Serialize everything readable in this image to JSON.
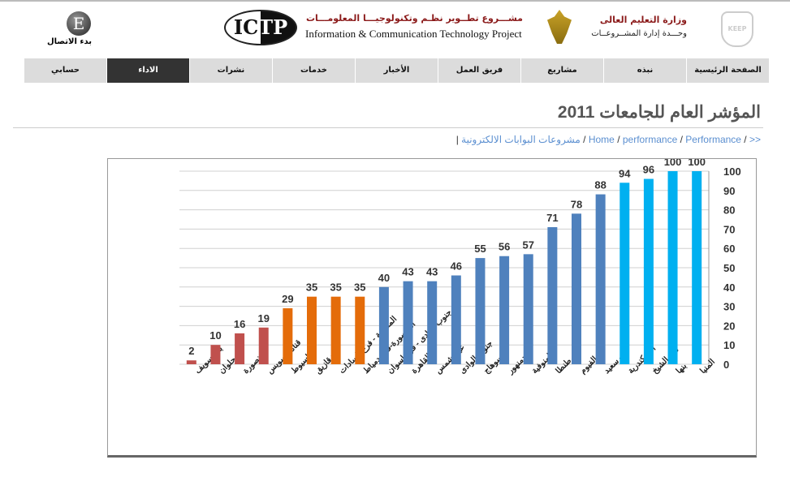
{
  "header": {
    "connect_logo_letter": "E",
    "connect_label": "بدء الاتصال",
    "ictp_logo": "ICTP",
    "project_ar": "مشـــروع تطــوير نظـم وتكنولوجيـــا المعلومـــات",
    "project_en": "Information & Communication Technology Project",
    "ministry": "وزارة التعليم العالى",
    "unit": "وحـــدة إدارة المشــروعــات",
    "keep_logo": "KEEP"
  },
  "nav": [
    {
      "label": "الصفحة الرئيسية",
      "active": false
    },
    {
      "label": "نبذه",
      "active": false
    },
    {
      "label": "مشاريع",
      "active": false
    },
    {
      "label": "فريق العمل",
      "active": false
    },
    {
      "label": "الأخبار",
      "active": false
    },
    {
      "label": "خدمات",
      "active": false
    },
    {
      "label": "نشرات",
      "active": false
    },
    {
      "label": "الاداء",
      "active": true
    },
    {
      "label": "حسابي",
      "active": false
    }
  ],
  "page_title": "المؤشر العام للجامعات 2011",
  "breadcrumb": {
    "prefix": ">>",
    "items": [
      "Performance",
      "performance",
      "Home",
      "مشروعات البوابات الالكترونية"
    ],
    "sep": "/",
    "end": "|"
  },
  "chart_data": {
    "type": "bar",
    "title": "",
    "categories": [
      "بنى سويف",
      "حلوان",
      "المنصورة",
      "قناة السويس",
      "اسيوط",
      "الزقازيق",
      "المنوفية - فرع السادات",
      "المنصورة-فرع دمياط",
      "جنوب الوادى - فرع اسوان",
      "القاهرة",
      "عين شمس",
      "جنوب الوادى",
      "سوهاج",
      "دمنهور",
      "المنوفية",
      "طنطا",
      "الفيوم",
      "بورسعيد",
      "الاسكندرية",
      "كفر الشيخ",
      "بنها",
      "المنيا"
    ],
    "values": [
      2,
      10,
      16,
      19,
      29,
      35,
      35,
      35,
      40,
      43,
      43,
      46,
      55,
      56,
      57,
      71,
      78,
      88,
      94,
      96,
      100,
      100
    ],
    "colors": [
      "#c0504d",
      "#c0504d",
      "#c0504d",
      "#c0504d",
      "#e46c0a",
      "#e46c0a",
      "#e46c0a",
      "#e46c0a",
      "#4f81bd",
      "#4f81bd",
      "#4f81bd",
      "#4f81bd",
      "#4f81bd",
      "#4f81bd",
      "#4f81bd",
      "#4f81bd",
      "#4f81bd",
      "#4f81bd",
      "#00b0f0",
      "#00b0f0",
      "#00b0f0",
      "#00b0f0"
    ],
    "ylim": [
      0,
      100
    ],
    "yticks": [
      0,
      10,
      20,
      30,
      40,
      50,
      60,
      70,
      80,
      90,
      100
    ],
    "yaxis_side": "right",
    "grid": true,
    "xlabel": "",
    "ylabel": ""
  }
}
